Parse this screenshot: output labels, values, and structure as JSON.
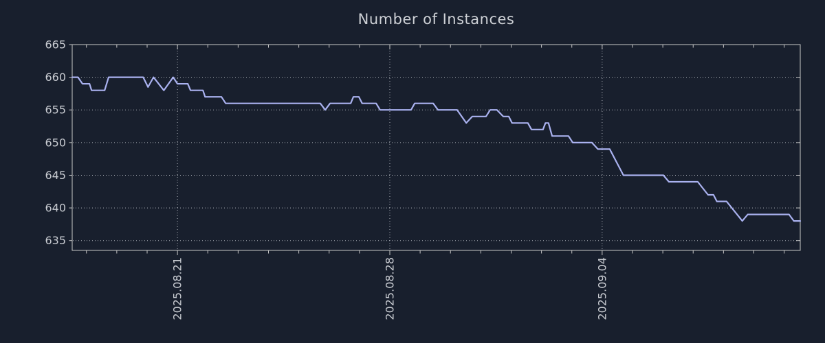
{
  "page": {
    "background": "#181f2d"
  },
  "chart_data": {
    "type": "line",
    "title": "Number of Instances",
    "x_axis": {
      "unit": "days_from_2025-08-21",
      "range": [
        -3.47,
        20.53
      ],
      "minor_tick_interval_days": 1,
      "major_ticks": [
        {
          "offset_days": 0,
          "label": "2025.08.21"
        },
        {
          "offset_days": 7,
          "label": "2025.08.28"
        },
        {
          "offset_days": 14,
          "label": "2025.09.04"
        }
      ]
    },
    "y_axis": {
      "range": [
        633.5,
        665
      ],
      "ticks": [
        665,
        660,
        655,
        650,
        645,
        640,
        635
      ]
    },
    "grid": {
      "style": "dotted",
      "horizontal_values": [
        660,
        655,
        650,
        645,
        640,
        635
      ],
      "vertical_offsets_days": [
        0,
        7,
        14
      ]
    },
    "series": [
      {
        "name": "instances",
        "color": "#aab2f0",
        "points": [
          [
            -3.47,
            660
          ],
          [
            -3.28,
            660
          ],
          [
            -3.13,
            659
          ],
          [
            -2.9,
            659
          ],
          [
            -2.83,
            658
          ],
          [
            -2.4,
            658
          ],
          [
            -2.27,
            660
          ],
          [
            -1.13,
            660
          ],
          [
            -0.97,
            658.5
          ],
          [
            -0.79,
            660
          ],
          [
            -0.45,
            658
          ],
          [
            -0.14,
            660
          ],
          [
            0.0,
            659
          ],
          [
            0.34,
            659
          ],
          [
            0.43,
            658
          ],
          [
            0.84,
            658
          ],
          [
            0.91,
            657
          ],
          [
            1.45,
            657
          ],
          [
            1.59,
            656
          ],
          [
            4.71,
            656
          ],
          [
            4.87,
            655
          ],
          [
            5.03,
            656
          ],
          [
            5.71,
            656
          ],
          [
            5.8,
            657
          ],
          [
            5.98,
            657
          ],
          [
            6.09,
            656
          ],
          [
            6.55,
            656
          ],
          [
            6.68,
            655
          ],
          [
            7.7,
            655
          ],
          [
            7.82,
            656
          ],
          [
            8.43,
            656
          ],
          [
            8.59,
            655
          ],
          [
            9.22,
            655
          ],
          [
            9.52,
            653
          ],
          [
            9.72,
            654
          ],
          [
            10.17,
            654
          ],
          [
            10.31,
            655
          ],
          [
            10.53,
            655
          ],
          [
            10.74,
            654
          ],
          [
            10.92,
            654
          ],
          [
            11.03,
            653
          ],
          [
            11.55,
            653
          ],
          [
            11.67,
            652
          ],
          [
            12.05,
            652
          ],
          [
            12.13,
            653
          ],
          [
            12.23,
            653
          ],
          [
            12.35,
            651
          ],
          [
            12.89,
            651
          ],
          [
            13.03,
            650
          ],
          [
            13.66,
            650
          ],
          [
            13.86,
            649
          ],
          [
            14.25,
            649
          ],
          [
            14.7,
            645
          ],
          [
            16.02,
            645
          ],
          [
            16.2,
            644
          ],
          [
            17.15,
            644
          ],
          [
            17.49,
            642
          ],
          [
            17.67,
            642
          ],
          [
            17.78,
            641
          ],
          [
            18.1,
            641
          ],
          [
            18.62,
            638
          ],
          [
            18.8,
            639
          ],
          [
            20.16,
            639
          ],
          [
            20.32,
            638
          ],
          [
            20.53,
            638
          ]
        ]
      }
    ],
    "colors": {
      "background": "#181f2d",
      "line": "#aab2f0",
      "axis": "#c8c8c8",
      "grid": "#aeb2ba",
      "tick_label": "#c8cbd1",
      "title": "#cdd0d5"
    }
  }
}
